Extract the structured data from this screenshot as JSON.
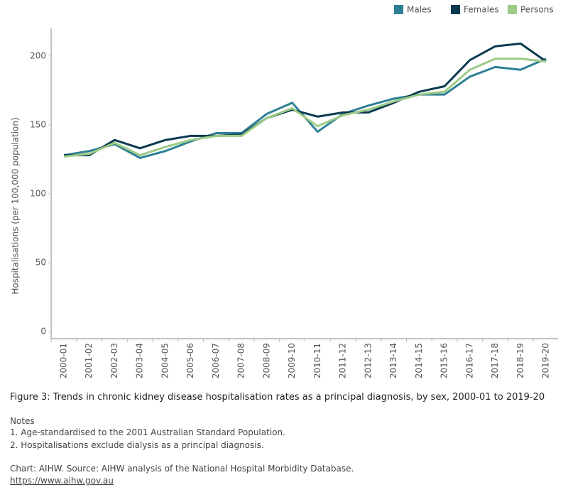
{
  "chart_data": {
    "type": "line",
    "title": "Figure 3: Trends in chronic kidney disease hospitalisation rates as a principal diagnosis, by sex, 2000-01 to 2019-20",
    "y_label": "Hospitalisations (per 100,000 population)",
    "categories": [
      "2000-01",
      "2001-02",
      "2002-03",
      "2003-04",
      "2004-05",
      "2005-06",
      "2006-07",
      "2007-08",
      "2008-09",
      "2009-10",
      "2010-11",
      "2011-12",
      "2012-13",
      "2013-14",
      "2014-15",
      "2015-16",
      "2016-17",
      "2017-18",
      "2018-19",
      "2019-20"
    ],
    "series": [
      {
        "name": "Males",
        "color": "#2e7f94",
        "values": [
          128,
          131,
          136,
          126,
          131,
          138,
          144,
          144,
          158,
          166,
          145,
          158,
          164,
          169,
          172,
          172,
          185,
          192,
          190,
          198
        ]
      },
      {
        "name": "Females",
        "color": "#0b3a50",
        "values": [
          128,
          128,
          139,
          133,
          139,
          142,
          142,
          143,
          155,
          161,
          156,
          159,
          159,
          166,
          174,
          178,
          197,
          207,
          209,
          196
        ]
      },
      {
        "name": "Persons",
        "color": "#9ccb86",
        "values": [
          127,
          129,
          137,
          128,
          134,
          139,
          142,
          142,
          155,
          162,
          149,
          157,
          161,
          167,
          172,
          174,
          190,
          198,
          198,
          196
        ]
      }
    ],
    "ylim": [
      0,
      220
    ],
    "yticks": [
      0,
      50,
      100,
      150,
      200
    ],
    "grid": false,
    "legend": "top-right",
    "notes": {
      "heading": "Notes",
      "items": [
        "1. Age-standardised to the 2001 Australian Standard Population.",
        "2. Hospitalisations exclude dialysis as a principal diagnosis."
      ]
    },
    "source": "Chart:  AIHW. Source: AIHW analysis of the National Hospital Morbidity Database.",
    "link": "https://www.aihw.gov.au"
  }
}
